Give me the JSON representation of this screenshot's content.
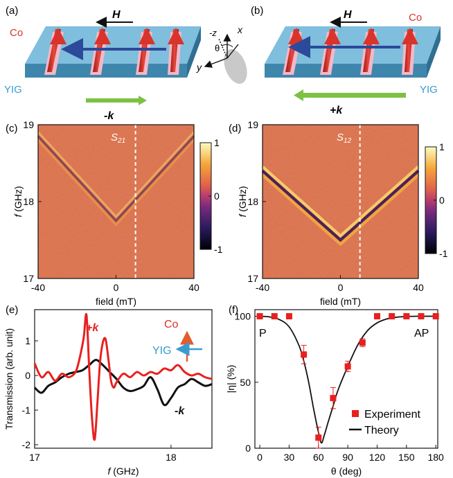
{
  "panels": {
    "a": {
      "label": "(a)",
      "material_wire": "Co",
      "material_film": "YIG",
      "field": "H",
      "wavevector": "-k"
    },
    "b": {
      "label": "(b)",
      "material_wire": "Co",
      "material_film": "YIG",
      "field": "H",
      "wavevector": "+k"
    },
    "axes_glyph": {
      "x": "x",
      "y": "y",
      "neg_z": "-z",
      "angle": "θ"
    },
    "c": {
      "label": "(c)",
      "map_label": "S",
      "map_sub": "21"
    },
    "d": {
      "label": "(d)",
      "map_label": "S",
      "map_sub": "12"
    },
    "e": {
      "label": "(e)",
      "plus_k": "+k",
      "minus_k": "-k",
      "inset_co": "Co",
      "inset_yig": "YIG"
    },
    "f": {
      "label": "(f)",
      "left_text": "P",
      "right_text": "AP"
    }
  },
  "colors": {
    "film": "#5fa6c9",
    "wire": "#d9342b",
    "wire_pad": "#f2b8c8",
    "green_arrow": "#7cc143",
    "blue_arrow": "#2b4a9a",
    "curve_red": "#e8201f",
    "curve_black": "#111111",
    "map_bg": "#d9704c",
    "marker": "#e8201f",
    "yig_text": "#3a9bd0",
    "co_text": "#d9342b"
  },
  "chart_data": [
    {
      "id": "c",
      "type": "heatmap",
      "title": "",
      "xlabel": "field (mT)",
      "ylabel": "f (GHz)",
      "xlim": [
        -40,
        40
      ],
      "ylim": [
        17,
        19
      ],
      "xticks": [
        "-40",
        "0",
        "40"
      ],
      "yticks": [
        "17",
        "18",
        "19"
      ],
      "colorbar": {
        "min": -1,
        "max": 1,
        "ticks": [
          "1",
          "0",
          "-1"
        ]
      },
      "dashed_line_x": 10,
      "branches": {
        "vertex": [
          0,
          17.75
        ],
        "left_top": [
          -40,
          18.85
        ],
        "right_top": [
          40,
          18.85
        ],
        "strength": 0.35
      }
    },
    {
      "id": "d",
      "type": "heatmap",
      "title": "",
      "xlabel": "field (mT)",
      "ylabel": "f (GHz)",
      "xlim": [
        -40,
        40
      ],
      "ylim": [
        17,
        19
      ],
      "xticks": [
        "-40",
        "0",
        "40"
      ],
      "yticks": [
        "17",
        "18",
        "19"
      ],
      "colorbar": {
        "min": -1,
        "max": 1,
        "ticks": [
          "1",
          "0",
          "-1"
        ]
      },
      "dashed_line_x": 10,
      "branches": {
        "vertex": [
          0,
          17.5
        ],
        "left_top": [
          -40,
          18.4
        ],
        "right_top": [
          40,
          18.4
        ],
        "strength": 1.0
      }
    },
    {
      "id": "e",
      "type": "line",
      "title": "",
      "xlabel": "f (GHz)",
      "ylabel": "Transmission (arb. unit)",
      "xlim": [
        17,
        18.3
      ],
      "ylim": [
        -2.1,
        1.9
      ],
      "xticks": [
        "17",
        "18"
      ],
      "yticks": [
        "1",
        "0",
        "-1",
        "-2"
      ],
      "series": [
        {
          "name": "+k",
          "x": [
            17.0,
            17.05,
            17.1,
            17.15,
            17.2,
            17.25,
            17.3,
            17.33,
            17.36,
            17.38,
            17.4,
            17.42,
            17.44,
            17.46,
            17.48,
            17.5,
            17.52,
            17.54,
            17.56,
            17.58,
            17.6,
            17.65,
            17.7,
            17.75,
            17.8,
            17.85,
            17.9,
            17.95,
            18.0,
            18.05,
            18.1,
            18.15,
            18.2,
            18.25,
            18.3
          ],
          "y": [
            0.35,
            -0.05,
            0.1,
            -0.15,
            0.05,
            -0.05,
            0.1,
            0.5,
            1.1,
            1.75,
            0.2,
            -1.2,
            -1.85,
            -0.8,
            0.4,
            0.95,
            1.05,
            0.5,
            -0.15,
            -0.35,
            -0.2,
            0.05,
            -0.05,
            0.1,
            0.0,
            0.1,
            0.05,
            0.2,
            0.15,
            0.3,
            0.1,
            0.0,
            0.05,
            -0.05,
            -0.1
          ]
        },
        {
          "name": "-k",
          "x": [
            17.0,
            17.05,
            17.1,
            17.15,
            17.2,
            17.25,
            17.3,
            17.35,
            17.4,
            17.45,
            17.5,
            17.55,
            17.6,
            17.65,
            17.7,
            17.75,
            17.8,
            17.85,
            17.9,
            17.95,
            18.0,
            18.05,
            18.1,
            18.15,
            18.2,
            18.25,
            18.3
          ],
          "y": [
            -0.35,
            -0.5,
            -0.3,
            -0.2,
            -0.05,
            0.05,
            0.1,
            0.15,
            0.3,
            0.45,
            0.3,
            0.1,
            -0.1,
            -0.35,
            -0.45,
            -0.4,
            -0.3,
            -0.05,
            -0.4,
            -0.85,
            -0.65,
            -0.35,
            -0.25,
            -0.1,
            -0.2,
            -0.3,
            -0.25
          ]
        }
      ]
    },
    {
      "id": "f",
      "type": "scatter",
      "title": "",
      "xlabel": "θ (deg)",
      "ylabel": "|η| (%)",
      "xlim": [
        -5,
        182
      ],
      "ylim": [
        0,
        105
      ],
      "xticks": [
        "0",
        "30",
        "60",
        "90",
        "120",
        "150",
        "180"
      ],
      "yticks": [
        "0",
        "50",
        "100"
      ],
      "legend": {
        "placement": "bottom-right",
        "entries": [
          "Experiment",
          "Theory"
        ]
      },
      "series": [
        {
          "name": "Experiment",
          "x": [
            0,
            15,
            30,
            45,
            60,
            75,
            90,
            105,
            120,
            135,
            150,
            165,
            180
          ],
          "y": [
            100,
            100,
            100,
            71,
            8,
            38,
            62,
            80,
            100,
            100,
            100,
            100,
            100
          ],
          "err": [
            0,
            0,
            0,
            7,
            8,
            8,
            4,
            3,
            0,
            0,
            0,
            0,
            0
          ]
        },
        {
          "name": "Theory",
          "x": [
            0,
            10,
            20,
            30,
            40,
            45,
            50,
            55,
            60,
            63,
            66,
            70,
            75,
            80,
            90,
            100,
            110,
            120,
            130,
            140,
            150,
            160,
            170,
            180
          ],
          "y": [
            100,
            99.5,
            97.5,
            92,
            78,
            66,
            50,
            30,
            12,
            4,
            10,
            20,
            32,
            44,
            62,
            78,
            89,
            95,
            98,
            99.3,
            99.8,
            100,
            100,
            100
          ]
        }
      ]
    }
  ]
}
